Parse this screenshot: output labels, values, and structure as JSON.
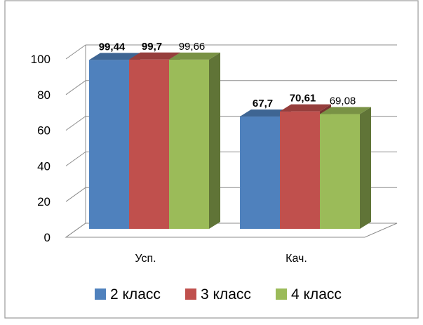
{
  "chart_data": {
    "type": "bar",
    "categories": [
      "Усп.",
      "Кач."
    ],
    "series": [
      {
        "name": "2 класс",
        "values": [
          99.44,
          67.7
        ],
        "labels": [
          "99,44",
          "67,7"
        ],
        "color": "#4F81BD",
        "label_bold": true
      },
      {
        "name": "3 класс",
        "values": [
          99.7,
          70.61
        ],
        "labels": [
          "99,7",
          "70,61"
        ],
        "color": "#C0504D",
        "label_bold": true
      },
      {
        "name": "4 класс",
        "values": [
          99.66,
          69.08
        ],
        "labels": [
          "99,66",
          "69,08"
        ],
        "color": "#9BBB59",
        "label_bold": false
      }
    ],
    "yticks": [
      "0",
      "20",
      "40",
      "60",
      "80",
      "100"
    ],
    "ylim": [
      0,
      100
    ],
    "grid": true,
    "style": "3d-clustered-column",
    "legend_position": "bottom"
  }
}
